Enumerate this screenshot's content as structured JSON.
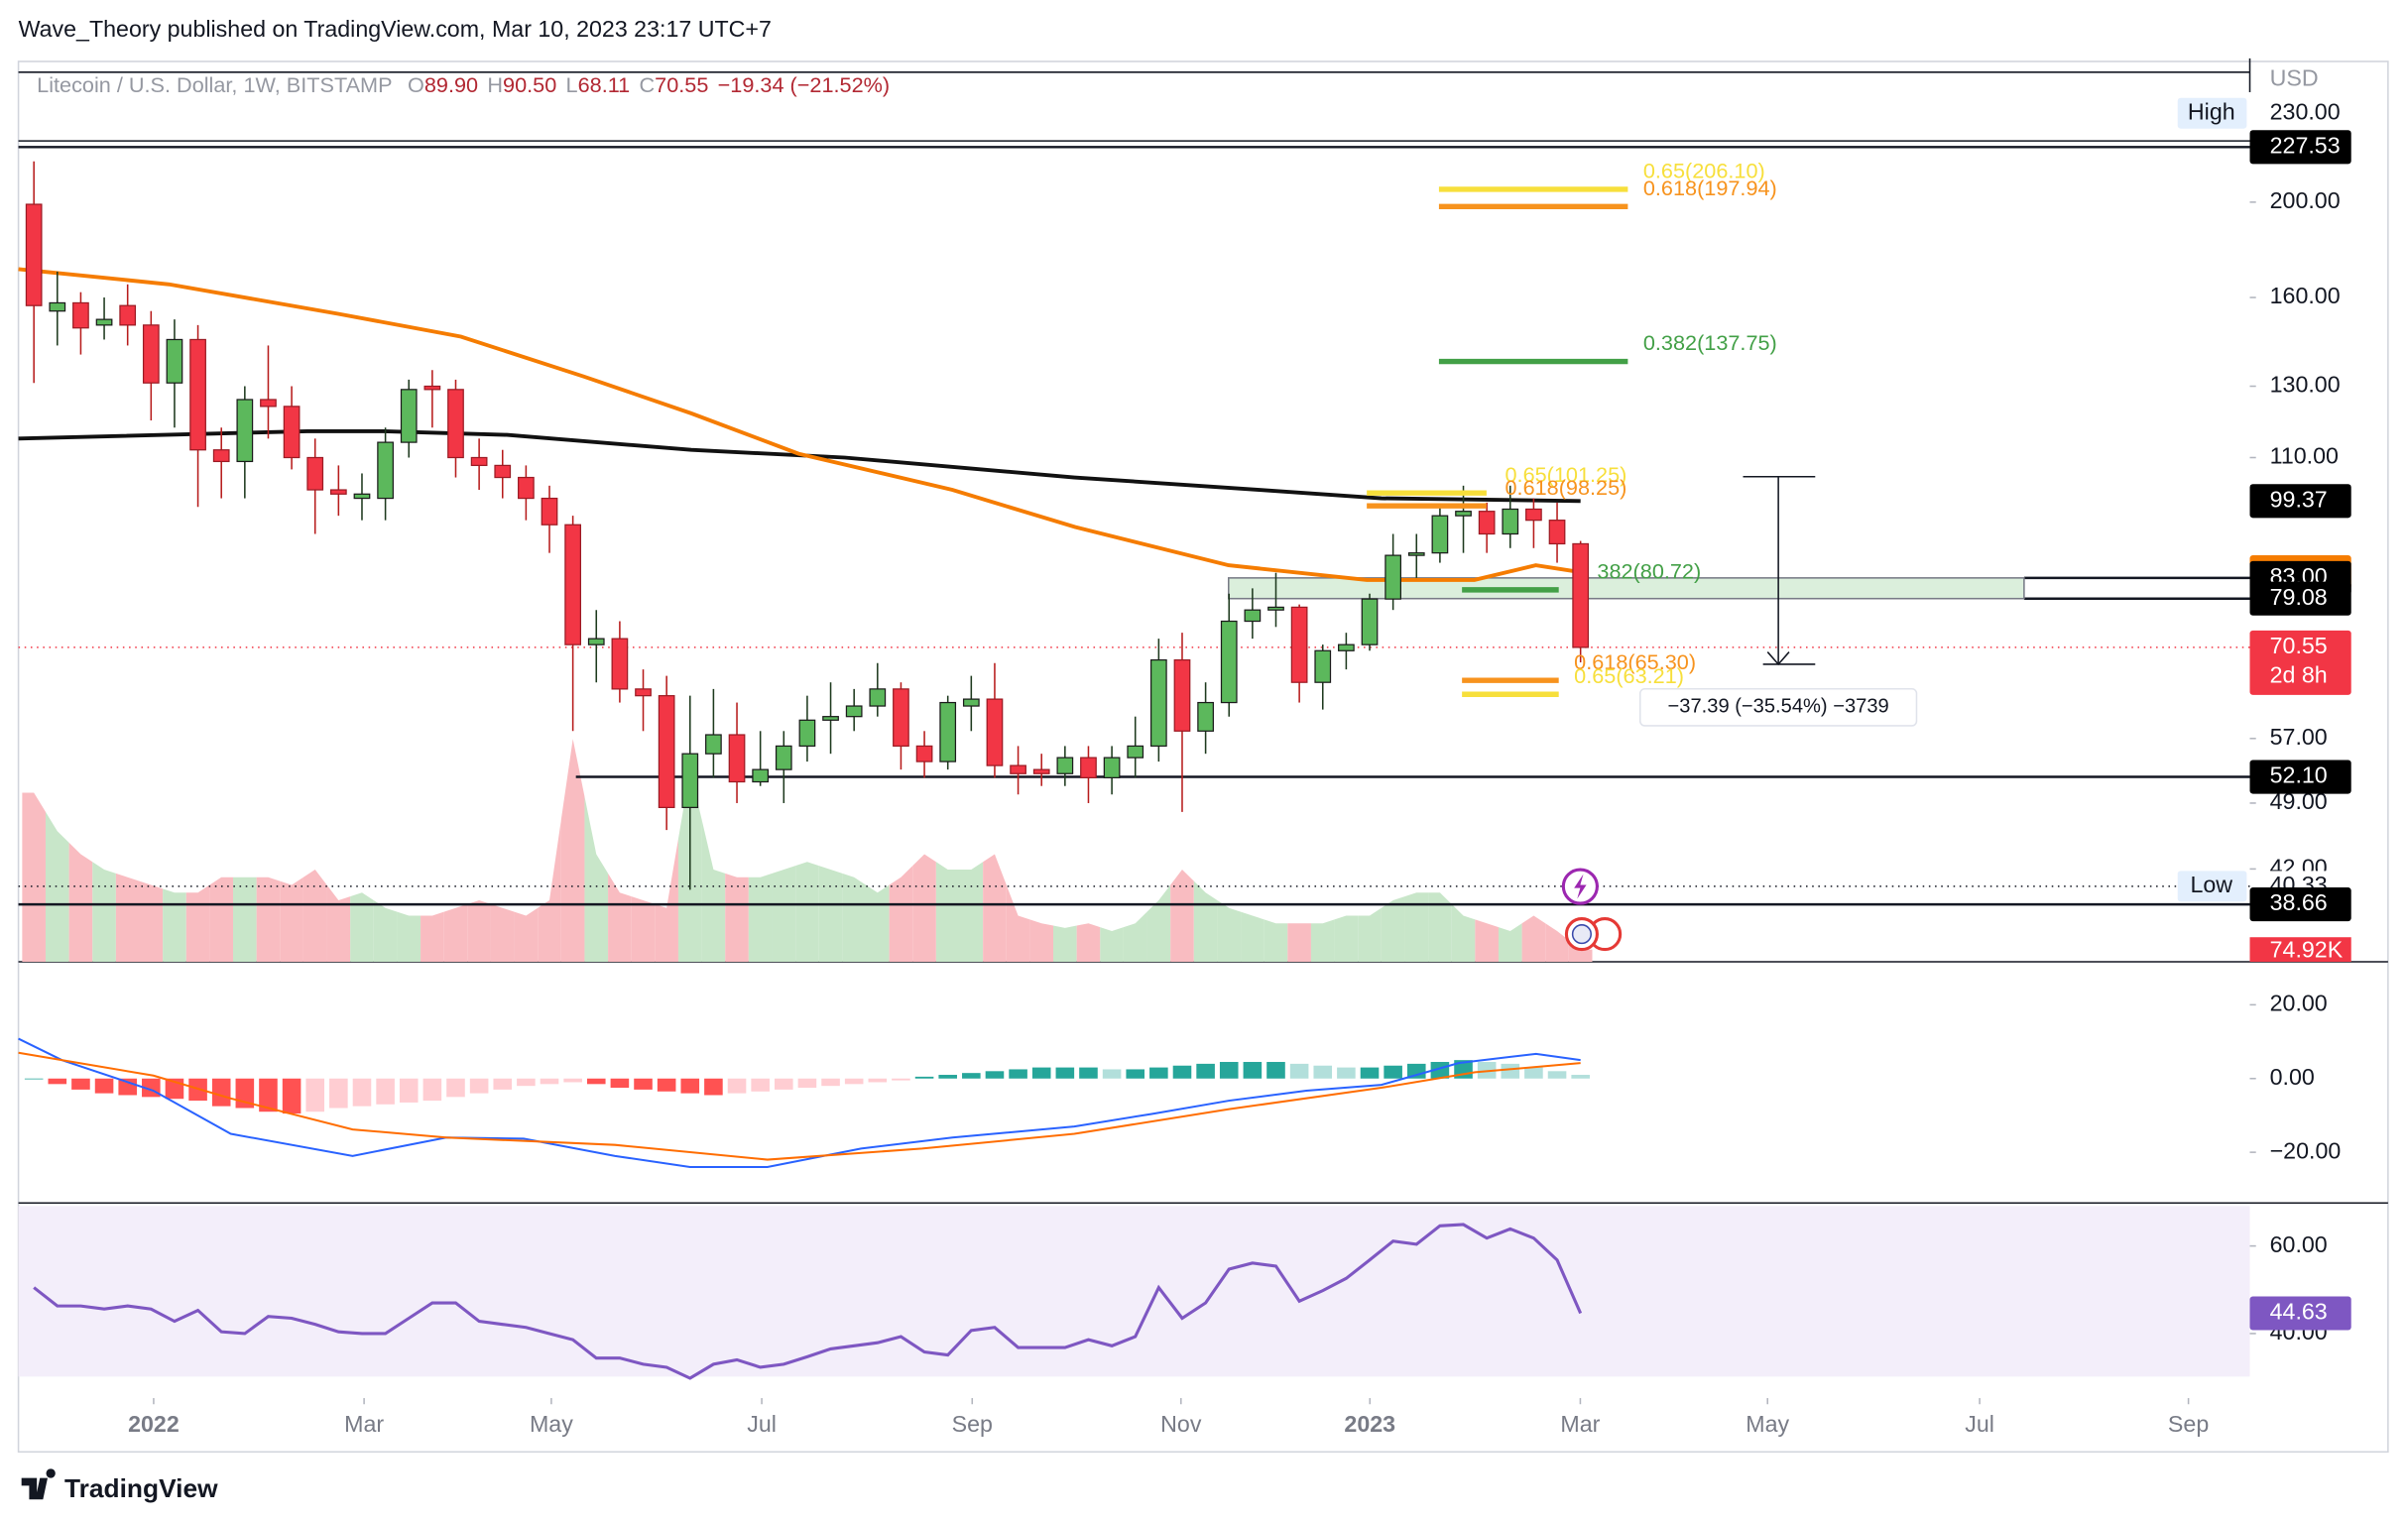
{
  "header": {
    "attribution": "Wave_Theory published on TradingView.com, Mar 10, 2023 23:17 UTC+7",
    "symbol": "Litecoin / U.S. Dollar, 1W, BITSTAMP",
    "ohlc": [
      {
        "key": "O",
        "value": "89.90"
      },
      {
        "key": "H",
        "value": "90.50"
      },
      {
        "key": "L",
        "value": "68.11"
      },
      {
        "key": "C",
        "value": "70.55"
      }
    ],
    "change": "−19.34 (−21.52%)",
    "currency": "USD",
    "brand": "TradingView"
  },
  "chart_data": [
    {
      "type": "candlestick",
      "log": true,
      "xlim": [
        -0.66,
        94.56
      ],
      "xticks": [
        {
          "value": 5.11,
          "label": "2022"
        },
        {
          "value": 14.09,
          "label": "Mar"
        },
        {
          "value": 22.08,
          "label": "May"
        },
        {
          "value": 31.06,
          "label": "Jul"
        },
        {
          "value": 40.04,
          "label": "Sep"
        },
        {
          "value": 48.95,
          "label": "Nov"
        },
        {
          "value": 57.01,
          "label": "2023"
        },
        {
          "value": 65.99,
          "label": "Mar"
        },
        {
          "value": 73.98,
          "label": "May"
        },
        {
          "value": 83.03,
          "label": "Jul"
        },
        {
          "value": 91.94,
          "label": "Sep"
        }
      ],
      "ylim": [
        33.8,
        278
      ],
      "yticks": [
        {
          "value": 200,
          "label": "200.00"
        },
        {
          "value": 160,
          "label": "160.00"
        },
        {
          "value": 130,
          "label": "130.00"
        },
        {
          "value": 110,
          "label": "110.00"
        },
        {
          "value": 57,
          "label": "57.00"
        },
        {
          "value": 49,
          "label": "49.00"
        },
        {
          "value": 42,
          "label": "42.00"
        }
      ],
      "up_color": "#5cb85c",
      "down_color": "#f23645",
      "open": [
        199,
        155,
        158,
        150,
        157,
        150,
        131,
        145,
        112,
        109,
        126,
        124,
        110,
        102,
        100,
        100,
        114,
        130,
        129,
        110,
        108,
        105,
        100,
        94,
        71,
        72,
        64,
        63,
        48.5,
        55,
        57.5,
        51.5,
        53,
        56,
        59.5,
        60,
        61.5,
        64,
        56,
        54,
        61.5,
        62.5,
        53.5,
        53,
        52.5,
        54.5,
        52,
        54.5,
        56,
        68.5,
        58,
        62,
        75,
        77,
        77.5,
        65,
        70,
        71,
        79,
        87.5,
        88,
        96,
        97,
        92,
        97.5,
        95,
        89.9
      ],
      "high": [
        220,
        170,
        162,
        160,
        165,
        155,
        152,
        150,
        118,
        130,
        143,
        130,
        115,
        108,
        106,
        118,
        132,
        135,
        132,
        115,
        112,
        108,
        103,
        96,
        77,
        75,
        67,
        66,
        63,
        64,
        62,
        58,
        58,
        63,
        65,
        64,
        68,
        65,
        58,
        63,
        66,
        68,
        56,
        55,
        56,
        56,
        56,
        60,
        72,
        73,
        65,
        80,
        81,
        84,
        78,
        71,
        73,
        80,
        92,
        92,
        98,
        103,
        99,
        103,
        100,
        99,
        90.5
      ],
      "low": [
        131,
        143,
        140,
        145,
        143,
        120,
        118,
        98,
        100,
        100,
        115,
        107,
        92,
        96,
        95,
        95,
        110,
        118,
        105,
        102,
        100,
        95,
        88,
        58,
        65,
        62,
        58,
        46,
        40,
        52,
        49,
        51,
        49,
        54,
        55,
        58,
        60,
        53,
        52,
        53,
        58,
        52,
        50,
        51,
        51,
        49,
        50,
        52,
        54,
        48,
        55,
        60,
        72,
        74,
        62,
        61,
        67,
        70,
        77,
        83,
        86,
        88,
        88,
        89,
        89,
        86,
        68.11
      ],
      "close": [
        157,
        158,
        149,
        152,
        150,
        131,
        145,
        112,
        109,
        126,
        124,
        110,
        102,
        101,
        101,
        114,
        129,
        129,
        110,
        108,
        105,
        100,
        94,
        71,
        72,
        64,
        63,
        48.5,
        55,
        57.5,
        51.5,
        53,
        56,
        59.5,
        60,
        61.5,
        64,
        56,
        54,
        62,
        62.5,
        53.5,
        52.5,
        52.5,
        54.5,
        52,
        54.5,
        56,
        68.5,
        58,
        62,
        75,
        77,
        77.5,
        65,
        70,
        71,
        79,
        87.5,
        88,
        96,
        97,
        92,
        97.5,
        95,
        89.9,
        70.55
      ],
      "volume": [
        1034,
        799,
        658,
        564,
        517,
        470,
        423,
        423,
        517,
        517,
        517,
        470,
        564,
        376,
        423,
        329,
        282,
        282,
        329,
        376,
        329,
        282,
        376,
        1363,
        658,
        423,
        376,
        329,
        1175,
        564,
        517,
        517,
        564,
        611,
        564,
        517,
        423,
        517,
        658,
        564,
        564,
        658,
        282,
        235,
        207,
        235,
        188,
        235,
        376,
        564,
        423,
        329,
        282,
        235,
        235,
        235,
        282,
        282,
        376,
        423,
        423,
        282,
        235,
        188,
        282,
        188,
        74.92
      ],
      "volume_lim": [
        0,
        5508
      ],
      "volume_up_color": "#c8e6c9",
      "volume_down_color": "#f9bcc1",
      "volume_tag": {
        "value": 74.92,
        "label": "74.92K",
        "color": "#f23645"
      },
      "moving_averages": [
        {
          "color": "#111111",
          "x": [
            -0.66,
            11.66,
            14.94,
            20.18,
            28.05,
            34.6,
            44.4,
            52.3,
            57.5,
            66
          ],
          "values": [
            115,
            117,
            117,
            116,
            112,
            110,
            105,
            102,
            100,
            99.37
          ]
        },
        {
          "color": "#f57c00",
          "x": [
            -0.66,
            5.77,
            12.98,
            18.22,
            23.46,
            28.05,
            32.63,
            39.19,
            44.43,
            50.98,
            56.88,
            61.47,
            64.09,
            66
          ],
          "values": [
            171,
            165,
            154,
            146,
            133,
            122,
            111,
            102,
            93.5,
            85.5,
            82.6,
            82.6,
            85.5,
            84.13
          ]
        }
      ],
      "fibs": [
        {
          "label": "0.65(206.10)",
          "value": 206.1,
          "color": "#f7df3b"
        },
        {
          "label": "0.618(197.94)",
          "value": 197.94,
          "color": "#f7931e"
        },
        {
          "label": "0.382(137.75)",
          "value": 137.75,
          "color": "#43a047"
        },
        {
          "label": "0.65(101.25)",
          "value": 101.25,
          "color": "#f7df3b"
        },
        {
          "label": "0.618(98.25)",
          "value": 98.25,
          "color": "#f7931e"
        },
        {
          "label": "382(80.72)",
          "value": 80.72,
          "color": "#43a047"
        },
        {
          "label": "0.618(65.30)",
          "value": 65.3,
          "color": "#f7931e"
        },
        {
          "label": "0.65(63.21)",
          "value": 63.21,
          "color": "#f7df3b"
        }
      ],
      "zone": [
        79.08,
        83
      ],
      "price_tags": [
        {
          "value": 227.53,
          "color": "#000000"
        },
        {
          "value": 99.37,
          "color": "#000000"
        },
        {
          "value": 84.13,
          "color": "#f57c00"
        },
        {
          "value": 83,
          "label": "83.00",
          "color": "#000000"
        },
        {
          "value": 79.08,
          "color": "#000000"
        },
        {
          "value": 70.55,
          "color": "#f23645",
          "note": "2d 8h"
        },
        {
          "value": 52.1,
          "label": "52.10",
          "color": "#000000"
        },
        {
          "value": 38.66,
          "color": "#000000"
        }
      ],
      "high_low": [
        {
          "text": "High",
          "value": 230,
          "label": "230.00"
        },
        {
          "text": "Low",
          "value": 40.33
        }
      ],
      "measure": {
        "start": 105.2,
        "end": 67.81,
        "label": "−37.39 (−35.54%) −3739"
      }
    },
    {
      "type": "macd",
      "ylim": [
        -33.75,
        31.67
      ],
      "yticks": [
        {
          "value": 20,
          "label": "20.00"
        },
        {
          "value": 0,
          "label": "0.00"
        },
        {
          "value": -20,
          "label": "−20.00"
        }
      ],
      "histogram": [
        0,
        -1.5,
        -3,
        -4,
        -4.5,
        -5,
        -5.5,
        -6,
        -7.5,
        -8,
        -9,
        -9.5,
        -9,
        -8,
        -7.5,
        -7,
        -6.5,
        -6,
        -5,
        -4,
        -3,
        -2,
        -1.5,
        -1,
        -1.5,
        -2.5,
        -3,
        -3.5,
        -4,
        -4.5,
        -4,
        -3.5,
        -3,
        -2.5,
        -2,
        -1.5,
        -1,
        -0.5,
        0.5,
        1,
        1.5,
        2,
        2.5,
        3,
        3,
        3,
        2.5,
        2.5,
        3,
        3.5,
        4,
        4.5,
        4.5,
        4.5,
        4,
        3.5,
        3,
        3,
        3.5,
        4,
        4.5,
        5,
        4.5,
        4,
        3,
        2,
        1
      ],
      "histogram_colors": [
        "#26a69a",
        "#b2dfdb",
        "#ffcdd2",
        "#ff5252"
      ],
      "series": [
        {
          "color": "#2962ff",
          "x": [
            -0.66,
            1.2,
            5.1,
            8.4,
            13.6,
            17.6,
            20.9,
            24.8,
            28,
            31.3,
            35.3,
            39.2,
            44.4,
            47.7,
            51,
            54.3,
            57.5,
            60.8,
            64.1,
            66
          ],
          "values": [
            10.8,
            5,
            -3.3,
            -15,
            -21,
            -16,
            -16.3,
            -21,
            -24,
            -24,
            -19,
            -16,
            -13,
            -9.6,
            -6,
            -3.3,
            -1.7,
            4.2,
            6.7,
            5
          ]
        },
        {
          "color": "#ff6d00",
          "x": [
            -0.66,
            5.1,
            8.4,
            13.6,
            17.6,
            24.8,
            31.3,
            37.9,
            44.4,
            51,
            57.5,
            61.5,
            66
          ],
          "values": [
            7,
            0.8,
            -5.4,
            -13.8,
            -16,
            -18,
            -22,
            -19,
            -15,
            -8.3,
            -2.5,
            1.7,
            4.2
          ]
        }
      ]
    },
    {
      "type": "rsi",
      "ylim": [
        25.26,
        69.82
      ],
      "yticks": [
        {
          "value": 60,
          "label": "60.00"
        },
        {
          "value": 40,
          "label": "40.00"
        }
      ],
      "band": [
        30,
        70
      ],
      "color": "#7e57c2",
      "values": [
        50.5,
        46.3,
        46.3,
        45.6,
        46.3,
        45.6,
        42.8,
        45.3,
        40.4,
        40.0,
        43.9,
        43.5,
        42.1,
        40.4,
        40.0,
        40.0,
        43.5,
        47.0,
        47.0,
        42.8,
        42.1,
        41.4,
        40.0,
        38.6,
        34.4,
        34.4,
        33.0,
        32.3,
        29.8,
        33.0,
        34.0,
        32.3,
        33.0,
        34.7,
        36.5,
        37.2,
        37.9,
        39.3,
        35.8,
        35.1,
        40.7,
        41.4,
        36.8,
        36.8,
        36.8,
        38.6,
        37.2,
        39.3,
        50.5,
        43.5,
        47.0,
        54.7,
        56.1,
        55.4,
        47.4,
        49.8,
        52.6,
        56.8,
        61.1,
        60.4,
        64.6,
        64.9,
        61.8,
        63.9,
        61.8,
        56.8,
        44.63
      ]
    }
  ]
}
